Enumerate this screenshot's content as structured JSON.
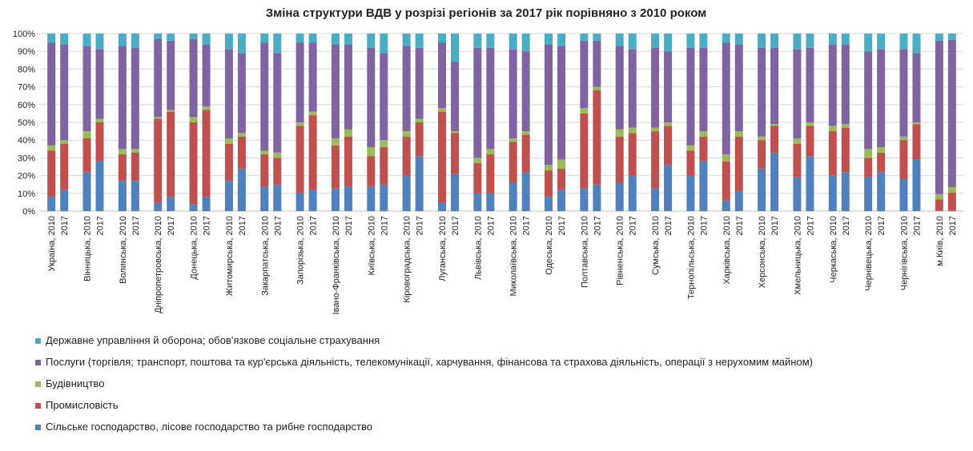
{
  "chart_data": {
    "type": "bar",
    "stacked": true,
    "percent": true,
    "title": "Зміна структури ВДВ у розрізі регіонів за 2017 рік порівняно з 2010 роком",
    "ylim": [
      0,
      100
    ],
    "y_ticks": [
      "0%",
      "10%",
      "20%",
      "30%",
      "40%",
      "50%",
      "60%",
      "70%",
      "80%",
      "90%",
      "100%"
    ],
    "grid": true,
    "legend_position": "bottom",
    "regions": [
      {
        "name": "Україна, 2010",
        "year2": "2017"
      },
      {
        "name": "Вінницька, 2010",
        "year2": "2017"
      },
      {
        "name": "Волинська, 2010",
        "year2": "2017"
      },
      {
        "name": "Дніпропетровська, 2010",
        "year2": "2017"
      },
      {
        "name": "Донецька, 2010",
        "year2": "2017"
      },
      {
        "name": "Житомирська, 2010",
        "year2": "2017"
      },
      {
        "name": "Закарпатська, 2010",
        "year2": "2017"
      },
      {
        "name": "Запорізька, 2010",
        "year2": "2017"
      },
      {
        "name": "Івано-Франківська, 2010",
        "year2": "2017"
      },
      {
        "name": "Київська, 2010",
        "year2": "2017"
      },
      {
        "name": "Кіровоградська, 2010",
        "year2": "2017"
      },
      {
        "name": "Луганська, 2010",
        "year2": "2017"
      },
      {
        "name": "Львівська, 2010",
        "year2": "2017"
      },
      {
        "name": "Миколаївська, 2010",
        "year2": "2017"
      },
      {
        "name": "Одеська, 2010",
        "year2": "2017"
      },
      {
        "name": "Полтавська, 2010",
        "year2": "2017"
      },
      {
        "name": "Рівненська, 2010",
        "year2": "2017"
      },
      {
        "name": "Сумська, 2010",
        "year2": "2017"
      },
      {
        "name": "Тернопільська, 2010",
        "year2": "2017"
      },
      {
        "name": "Харківська, 2010",
        "year2": "2017"
      },
      {
        "name": "Херсонська, 2010",
        "year2": "2017"
      },
      {
        "name": "Хмельницька, 2010",
        "year2": "2017"
      },
      {
        "name": "Черкаська, 2010",
        "year2": "2017"
      },
      {
        "name": "Чернівецька, 2010",
        "year2": "2017"
      },
      {
        "name": "Чернігівська, 2010",
        "year2": "2017"
      },
      {
        "name": "м.Київ, 2010",
        "year2": "2017"
      }
    ],
    "series": [
      {
        "name": "Сільське господарство, лісове господарство та рибне господарство",
        "color": "#4f81bd",
        "values": [
          8,
          12,
          22,
          28,
          17,
          17,
          5,
          8,
          4,
          8,
          17,
          24,
          14,
          15,
          10,
          12,
          13,
          14,
          14,
          15,
          20,
          31,
          5,
          21,
          10,
          10,
          16,
          22,
          8,
          12,
          13,
          15,
          16,
          20,
          13,
          26,
          20,
          28,
          6,
          11,
          24,
          33,
          19,
          31,
          20,
          22,
          19,
          22,
          18,
          29,
          0.5,
          0.5
        ]
      },
      {
        "name": "Промисловість",
        "color": "#c0504d",
        "values": [
          26,
          26,
          19,
          22,
          15,
          16,
          47,
          48,
          46,
          49,
          21,
          18,
          18,
          15,
          38,
          42,
          24,
          28,
          17,
          21,
          22,
          19,
          51,
          23,
          17,
          22,
          23,
          21,
          15,
          12,
          42,
          53,
          26,
          24,
          32,
          22,
          14,
          14,
          22,
          31,
          16,
          15,
          19,
          17,
          25,
          25,
          11,
          11,
          22,
          20,
          6,
          10
        ]
      },
      {
        "name": "Будівництво",
        "color": "#9bbb59",
        "values": [
          3,
          2,
          4,
          2,
          3,
          2,
          1,
          1,
          3,
          2,
          3,
          2,
          2,
          3,
          2,
          2,
          4,
          4,
          5,
          4,
          3,
          2,
          2,
          1,
          3,
          3,
          2,
          2,
          3,
          5,
          3,
          2,
          4,
          3,
          2,
          2,
          3,
          3,
          4,
          3,
          2,
          1,
          3,
          2,
          3,
          2,
          5,
          3,
          2,
          1,
          3,
          3
        ]
      },
      {
        "name": "Послуги (торгівля; транспорт, поштова та кур'єрська діяльність, телекомунікації, харчування, фінансова та страхова діяльність, операції з нерухомим майном)",
        "color": "#8064a2",
        "values": [
          58,
          54,
          48,
          39,
          58,
          57,
          44,
          39,
          44,
          35,
          50,
          45,
          61,
          56,
          45,
          39,
          53,
          48,
          56,
          49,
          48,
          40,
          37,
          39,
          62,
          57,
          50,
          45,
          68,
          64,
          38,
          26,
          47,
          44,
          45,
          40,
          55,
          47,
          63,
          49,
          50,
          43,
          50,
          42,
          46,
          45,
          55,
          55,
          49,
          39,
          86,
          83
        ]
      },
      {
        "name": "Державне управління й оборона; обов'язкове соціальне страхування",
        "color": "#4bacc6",
        "values": [
          5,
          6,
          7,
          9,
          7,
          8,
          3,
          4,
          3,
          6,
          9,
          11,
          5,
          11,
          5,
          5,
          6,
          6,
          8,
          11,
          7,
          8,
          5,
          16,
          8,
          8,
          9,
          10,
          6,
          7,
          4,
          4,
          7,
          9,
          8,
          10,
          8,
          8,
          5,
          6,
          8,
          8,
          9,
          8,
          6,
          6,
          10,
          9,
          9,
          11,
          4,
          3.5
        ]
      }
    ]
  }
}
